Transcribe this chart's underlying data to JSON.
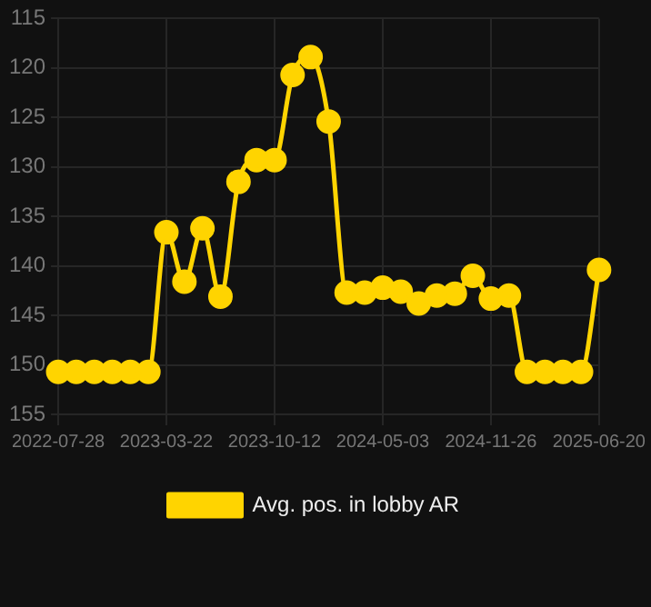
{
  "chart_data": {
    "type": "line",
    "categories": [
      "2022-07-28",
      null,
      null,
      null,
      null,
      null,
      "2023-03-22",
      null,
      null,
      null,
      null,
      null,
      "2023-10-12",
      null,
      null,
      null,
      null,
      null,
      "2024-05-03",
      null,
      null,
      null,
      null,
      null,
      "2024-11-26",
      null,
      null,
      null,
      null,
      null,
      "2025-06-20"
    ],
    "series": [
      {
        "name": "Avg. pos. in lobby AR",
        "color": "#ffd400",
        "values": [
          150.7,
          150.7,
          150.7,
          150.7,
          150.7,
          150.7,
          136.6,
          141.6,
          136.2,
          143.1,
          131.5,
          129.3,
          129.3,
          120.7,
          118.9,
          125.4,
          142.7,
          142.7,
          142.2,
          142.6,
          143.8,
          143.0,
          142.8,
          141.0,
          143.3,
          143.0,
          150.7,
          150.7,
          150.7,
          150.7,
          140.4
        ]
      }
    ],
    "ylim": [
      155,
      115
    ],
    "yticks": [
      115,
      120,
      125,
      130,
      135,
      140,
      145,
      150,
      155
    ],
    "grid": true,
    "legend": "bottom",
    "marker": "circle",
    "line_style": "solid"
  }
}
